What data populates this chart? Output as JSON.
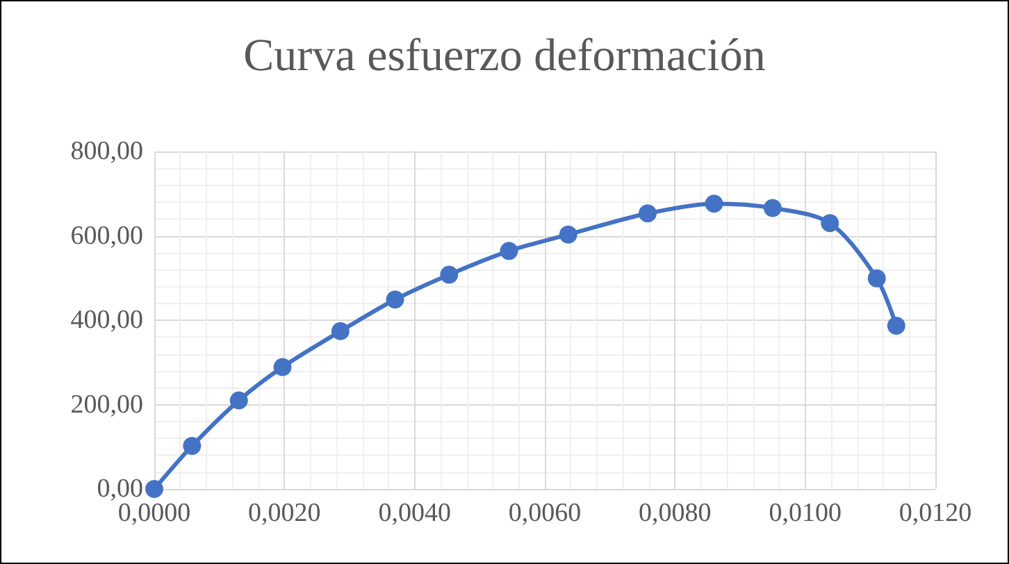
{
  "chart_data": {
    "type": "line",
    "title": "Curva esfuerzo deformación",
    "x": [
      0,
      0.00058,
      0.0013,
      0.00197,
      0.00286,
      0.0037,
      0.00453,
      0.00545,
      0.00636,
      0.00758,
      0.0086,
      0.0095,
      0.01038,
      0.0111,
      0.0114
    ],
    "series": [
      {
        "color": "#4472c4",
        "values": [
          0,
          102,
          210,
          289,
          374,
          449,
          508,
          564,
          603,
          653,
          676,
          666,
          630,
          499,
          387
        ]
      }
    ],
    "xlim": [
      0,
      0.012
    ],
    "xticks": [
      {
        "value": 0,
        "label": "0,0000"
      },
      {
        "value": 0.002,
        "label": "0,0020"
      },
      {
        "value": 0.004,
        "label": "0,0040"
      },
      {
        "value": 0.006,
        "label": "0,0060"
      },
      {
        "value": 0.008,
        "label": "0,0080"
      },
      {
        "value": 0.01,
        "label": "0,0100"
      },
      {
        "value": 0.012,
        "label": "0,0120"
      }
    ],
    "ylim": [
      0,
      800
    ],
    "yticks": [
      {
        "value": 0,
        "label": "0,00"
      },
      {
        "value": 200,
        "label": "200,00"
      },
      {
        "value": 400,
        "label": "400,00"
      },
      {
        "value": 600,
        "label": "600,00"
      },
      {
        "value": 800,
        "label": "800,00"
      }
    ],
    "grid": true,
    "marker": "circle",
    "line_style": "solid"
  }
}
